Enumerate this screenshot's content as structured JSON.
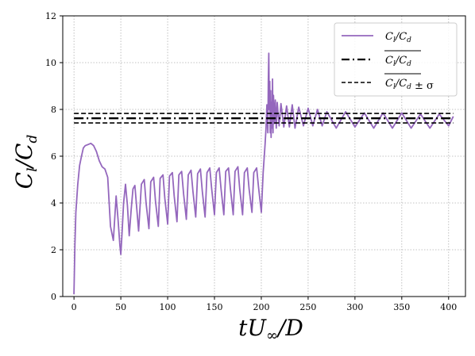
{
  "chart_data": {
    "type": "line",
    "xlabel": "tU∞/D",
    "ylabel": "Cl/Cd",
    "xlim": [
      -12,
      418
    ],
    "ylim": [
      0,
      12
    ],
    "xticks": [
      0,
      50,
      100,
      150,
      200,
      250,
      300,
      350,
      400
    ],
    "yticks": [
      0,
      2,
      4,
      6,
      8,
      10,
      12
    ],
    "grid": true,
    "legend_position": "top-right",
    "colors": {
      "series": "#9467bd",
      "mean": "#000000",
      "band": "#000000"
    },
    "series": [
      {
        "name": "Cl/Cd",
        "x": [
          0,
          1,
          2,
          4,
          6,
          8,
          10,
          12,
          15,
          18,
          21,
          24,
          27,
          30,
          33,
          36,
          39,
          42,
          45,
          47,
          49,
          50,
          51,
          53,
          55,
          57,
          59,
          61,
          63,
          65,
          67,
          69,
          72,
          75,
          77,
          80,
          82,
          85,
          87,
          90,
          92,
          95,
          97,
          100,
          102,
          105,
          107,
          110,
          112,
          115,
          117,
          120,
          122,
          125,
          127,
          130,
          132,
          135,
          137,
          140,
          142,
          145,
          147,
          150,
          152,
          155,
          157,
          160,
          162,
          165,
          167,
          170,
          172,
          175,
          177,
          180,
          182,
          185,
          187,
          190,
          192,
          195,
          197,
          200,
          202,
          204,
          205,
          206,
          207,
          207.5,
          208,
          208.5,
          209,
          209.5,
          210,
          210.5,
          211,
          211.5,
          212,
          212.5,
          213,
          214,
          215,
          216,
          217,
          219,
          221,
          224,
          227,
          230,
          233,
          236,
          240,
          245,
          250,
          255,
          260,
          265,
          270,
          280,
          290,
          300,
          310,
          320,
          330,
          340,
          350,
          360,
          370,
          380,
          390,
          400,
          405
        ],
        "y": [
          0.1,
          2.2,
          3.6,
          4.8,
          5.6,
          6.0,
          6.35,
          6.45,
          6.5,
          6.55,
          6.45,
          6.2,
          5.8,
          5.55,
          5.45,
          5.1,
          3.0,
          2.4,
          4.3,
          3.3,
          2.2,
          1.8,
          2.5,
          4.0,
          4.8,
          3.9,
          2.6,
          3.7,
          4.6,
          4.75,
          3.8,
          2.8,
          4.8,
          5.0,
          4.0,
          2.9,
          4.9,
          5.1,
          4.1,
          3.0,
          5.05,
          5.2,
          4.2,
          3.1,
          5.15,
          5.3,
          4.3,
          3.2,
          5.2,
          5.35,
          4.4,
          3.3,
          5.2,
          5.4,
          4.5,
          3.4,
          5.25,
          5.45,
          4.5,
          3.4,
          5.3,
          5.5,
          4.6,
          3.5,
          5.3,
          5.5,
          4.6,
          3.5,
          5.35,
          5.5,
          4.6,
          3.5,
          5.35,
          5.55,
          4.6,
          3.5,
          5.3,
          5.5,
          4.6,
          3.6,
          5.3,
          5.5,
          4.7,
          3.6,
          5.3,
          6.5,
          7.2,
          8.2,
          7.0,
          9.2,
          10.4,
          8.0,
          9.2,
          7.0,
          8.8,
          6.8,
          8.3,
          7.2,
          9.3,
          7.0,
          8.6,
          7.4,
          8.4,
          7.2,
          8.3,
          7.3,
          8.25,
          7.25,
          8.15,
          7.25,
          8.2,
          7.2,
          8.1,
          7.3,
          8.05,
          7.3,
          8.0,
          7.3,
          7.9,
          7.2,
          7.9,
          7.25,
          7.85,
          7.2,
          7.85,
          7.2,
          7.85,
          7.2,
          7.8,
          7.2,
          7.8,
          7.3,
          7.7
        ]
      }
    ],
    "reference_lines": [
      {
        "name": "mean",
        "y": 7.62,
        "style": "dashdot"
      },
      {
        "name": "mean+sigma",
        "y": 7.83,
        "style": "dashed"
      },
      {
        "name": "mean-sigma",
        "y": 7.42,
        "style": "dashed"
      }
    ],
    "legend": [
      {
        "label": "Cl/Cd",
        "style": "solid",
        "color": "#9467bd"
      },
      {
        "label": "Cl/Cd (overline)",
        "style": "dashdot",
        "color": "#000000"
      },
      {
        "label": "Cl/Cd (overline) ± σ",
        "style": "dashed",
        "color": "#000000"
      }
    ]
  }
}
